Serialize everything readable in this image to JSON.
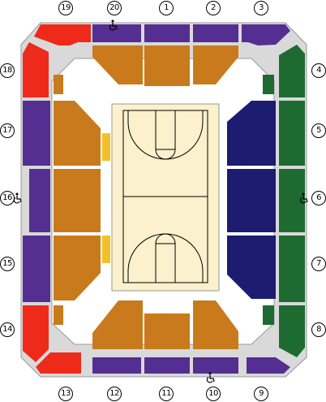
{
  "colors": {
    "purple": "#542e91",
    "orange": "#c97a1c",
    "navy": "#1c1c70",
    "green": "#1e6b32",
    "red": "#ee2a1b",
    "yellow": "#f2c12a",
    "court": "#fbf1cc",
    "concourse": "#d9d9d9",
    "grey_outline": "#999999"
  },
  "sections": [
    {
      "id": "1",
      "label": "1",
      "color_group": "purple"
    },
    {
      "id": "2",
      "label": "2",
      "color_group": "purple"
    },
    {
      "id": "3",
      "label": "3",
      "color_group": "purple"
    },
    {
      "id": "4",
      "label": "4",
      "color_group": "green"
    },
    {
      "id": "5",
      "label": "5",
      "color_group": "green"
    },
    {
      "id": "6",
      "label": "6",
      "color_group": "green"
    },
    {
      "id": "7",
      "label": "7",
      "color_group": "green"
    },
    {
      "id": "8",
      "label": "8",
      "color_group": "green"
    },
    {
      "id": "9",
      "label": "9",
      "color_group": "purple"
    },
    {
      "id": "10",
      "label": "10",
      "color_group": "purple"
    },
    {
      "id": "11",
      "label": "11",
      "color_group": "purple"
    },
    {
      "id": "12",
      "label": "12",
      "color_group": "purple"
    },
    {
      "id": "13",
      "label": "13",
      "color_group": "red"
    },
    {
      "id": "14",
      "label": "14",
      "color_group": "red"
    },
    {
      "id": "15",
      "label": "15",
      "color_group": "purple"
    },
    {
      "id": "16",
      "label": "16",
      "color_group": "purple"
    },
    {
      "id": "17",
      "label": "17",
      "color_group": "purple"
    },
    {
      "id": "18",
      "label": "18",
      "color_group": "red"
    },
    {
      "id": "19",
      "label": "19",
      "color_group": "red"
    },
    {
      "id": "20",
      "label": "20",
      "color_group": "purple"
    }
  ],
  "wheelchair_sections": [
    "20",
    "16",
    "6",
    "10"
  ],
  "wheelchair_icon": "wheelchair-icon"
}
